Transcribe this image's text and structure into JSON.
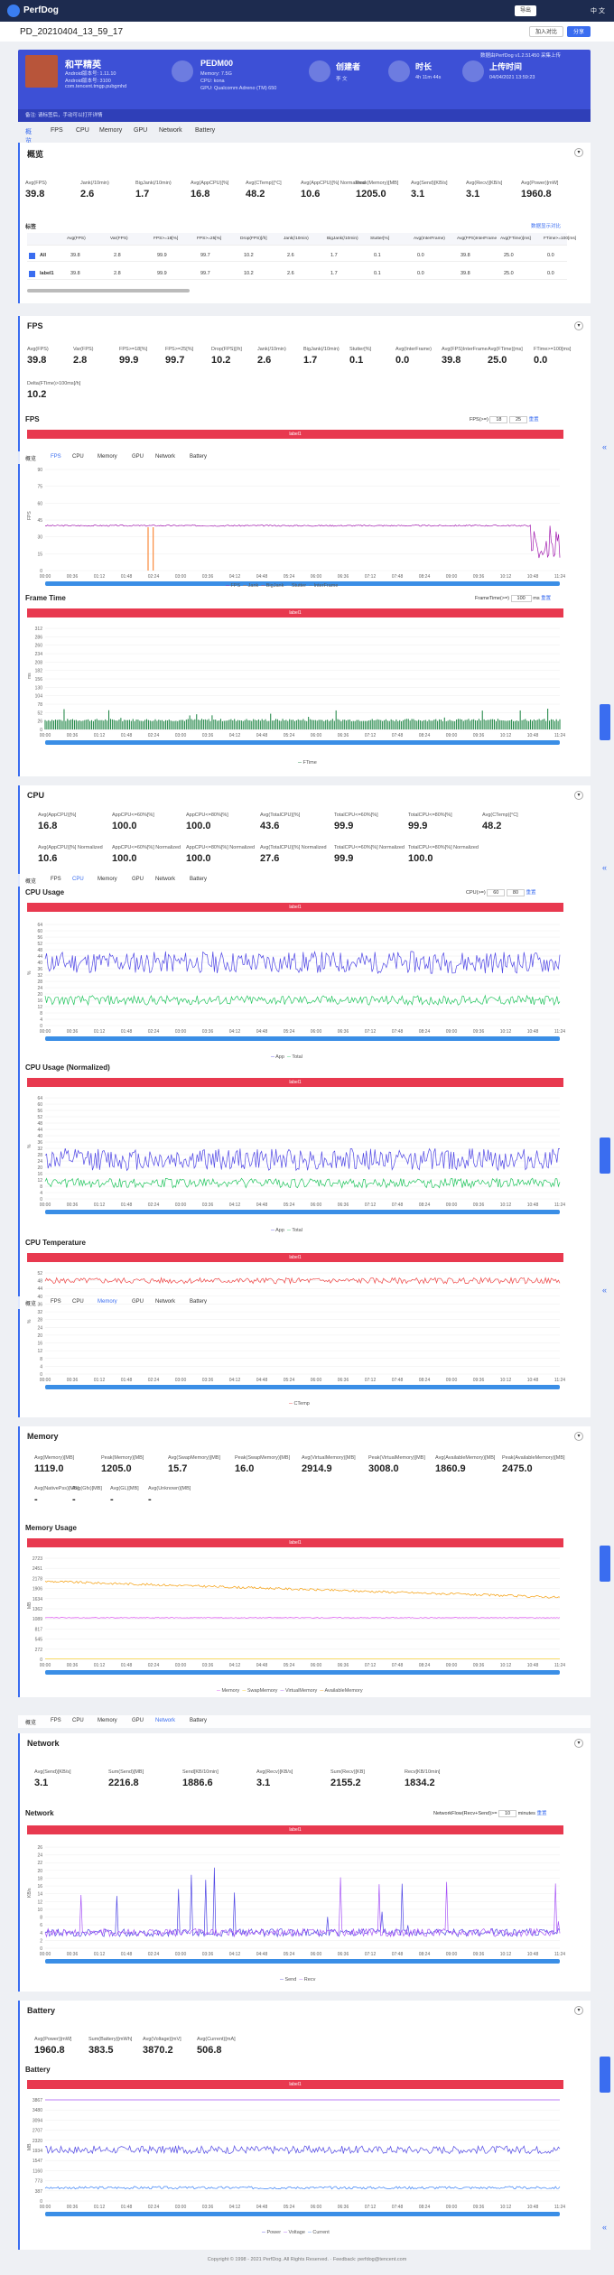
{
  "app": {
    "brand": "PerfDog",
    "btn_dl": "导出",
    "lang": "中 文"
  },
  "title": {
    "text": "PD_20210404_13_59_17",
    "btn1": "加入对比",
    "btn2": "分享"
  },
  "hero": {
    "name": "和平精英",
    "android": "Android版本号: 1.11.10",
    "ver": "Android版本号: 3100",
    "pkg": "com.tencent.tmgp.pubgmhd",
    "device": "PEDM00",
    "mem": "Memory: 7.5G",
    "cpu": "CPU: kona",
    "gpu": "GPU: Qualcomm Adreno (TM) 650",
    "creator_l": "创建者",
    "creator": "李 文",
    "dur_l": "时长",
    "dur": "4h 11m 44s",
    "up_l": "上传时间",
    "up": "04/04/2021 13:59:23",
    "footer": "备注: 请标签后，手动可以打开详情",
    "ver2": "数据由PerfDog v1.2.51450 采集上传"
  },
  "tabs": [
    "概览",
    "FPS",
    "CPU",
    "Memory",
    "GPU",
    "Network",
    "Battery"
  ],
  "overview": {
    "title": "概览",
    "stats": [
      {
        "k": "Avg(FPS)",
        "v": "39.8"
      },
      {
        "k": "Jank(/10min)",
        "v": "2.6"
      },
      {
        "k": "BigJank(/10min)",
        "v": "1.7"
      },
      {
        "k": "Avg(AppCPU)[%]",
        "v": "16.8"
      },
      {
        "k": "Avg(CTemp)[°C]",
        "v": "48.2"
      },
      {
        "k": "Avg(AppCPU)[%] Normalized",
        "v": "10.6"
      },
      {
        "k": "Peak(Memory)[MB]",
        "v": "1205.0"
      },
      {
        "k": "Avg(Send)[KB/s]",
        "v": "3.1"
      },
      {
        "k": "Avg(Recv)[KB/s]",
        "v": "3.1"
      },
      {
        "k": "Avg(Power)[mW]",
        "v": "1960.8"
      }
    ],
    "label_title": "标签",
    "label_link": "数据显示对比",
    "cols": [
      "Avg(FPS)",
      "Var(FPS)",
      "FPS>=18[%]",
      "FPS>=25[%]",
      "Drop(FPS)[/h]",
      "Jank(/10min)",
      "BigJank(/10min)",
      "Stutter[%]",
      "Avg(InterFrame)",
      "Avg(FPS)InterFrame",
      "Avg(FTime)[ms]",
      "FTime>=100[ms]"
    ],
    "rows": [
      {
        "n": "All",
        "v": [
          "39.8",
          "2.8",
          "99.9",
          "99.7",
          "10.2",
          "2.6",
          "1.7",
          "0.1",
          "0.0",
          "39.8",
          "25.0",
          "0.0"
        ]
      },
      {
        "n": "label1",
        "v": [
          "39.8",
          "2.8",
          "99.9",
          "99.7",
          "10.2",
          "2.6",
          "1.7",
          "0.1",
          "0.0",
          "39.8",
          "25.0",
          "0.0"
        ]
      }
    ]
  },
  "fps": {
    "title": "FPS",
    "stats": [
      {
        "k": "Avg(FPS)",
        "v": "39.8"
      },
      {
        "k": "Var(FPS)",
        "v": "2.8"
      },
      {
        "k": "FPS>=18[%]",
        "v": "99.9"
      },
      {
        "k": "FPS>=25[%]",
        "v": "99.7"
      },
      {
        "k": "Drop(FPS)[/h]",
        "v": "10.2"
      },
      {
        "k": "Jank(/10min)",
        "v": "2.6"
      },
      {
        "k": "BigJank(/10min)",
        "v": "1.7"
      },
      {
        "k": "Stutter[%]",
        "v": "0.1"
      },
      {
        "k": "Avg(InterFrame)",
        "v": "0.0"
      },
      {
        "k": "Avg(FPS)InterFrame",
        "v": "39.8"
      },
      {
        "k": "Avg(FTime)[ms]",
        "v": "25.0"
      },
      {
        "k": "FTime>=100[ms]",
        "v": "0.0"
      }
    ],
    "delta_k": "Delta(FTime)>100ms[/h]",
    "delta_v": "10.2",
    "chart_title": "FPS",
    "fps_ctrl": "FPS(>=)",
    "fps_a": "18",
    "fps_b": "25",
    "ctrl_btn": "重置",
    "label": "label1",
    "legend": [
      "FPS",
      "Jank",
      "BigJank",
      "Stutter",
      "InterFrame"
    ],
    "ft_title": "Frame Time",
    "ft_ctrl": "FrameTime(>=)",
    "ft_val": "100",
    "ft_unit": "ms",
    "ft_legend": [
      "FTime"
    ]
  },
  "cpu": {
    "title": "CPU",
    "stats": [
      {
        "k": "Avg(AppCPU)[%]",
        "v": "16.8"
      },
      {
        "k": "AppCPU<=60%[%]",
        "v": "100.0"
      },
      {
        "k": "AppCPU<=80%[%]",
        "v": "100.0"
      },
      {
        "k": "Avg(TotalCPU)[%]",
        "v": "43.6"
      },
      {
        "k": "TotalCPU<=60%[%]",
        "v": "99.9"
      },
      {
        "k": "TotalCPU<=80%[%]",
        "v": "99.9"
      },
      {
        "k": "Avg(CTemp)[°C]",
        "v": "48.2"
      }
    ],
    "stats2": [
      {
        "k": "Avg(AppCPU)[%] Normalized",
        "v": "10.6"
      },
      {
        "k": "AppCPU<=60%[%] Normalized",
        "v": "100.0"
      },
      {
        "k": "AppCPU<=80%[%] Normalized",
        "v": "100.0"
      },
      {
        "k": "Avg(TotalCPU)[%] Normalized",
        "v": "27.6"
      },
      {
        "k": "TotalCPU<=60%[%] Normalized",
        "v": "99.9"
      },
      {
        "k": "TotalCPU<=80%[%] Normalized",
        "v": "100.0"
      }
    ],
    "usage": "CPU Usage",
    "usage_n": "CPU Usage (Normalized)",
    "temp": "CPU Temperature",
    "ctrl": "CPU(>=)",
    "ca": "60",
    "cb": "80",
    "legend": [
      "App",
      "Total"
    ],
    "temp_legend": [
      "CTemp"
    ]
  },
  "memory": {
    "title": "Memory",
    "stats": [
      {
        "k": "Avg(Memory)[MB]",
        "v": "1119.0"
      },
      {
        "k": "Peak(Memory)[MB]",
        "v": "1205.0"
      },
      {
        "k": "Avg(SwapMemory)[MB]",
        "v": "15.7"
      },
      {
        "k": "Peak(SwapMemory)[MB]",
        "v": "16.0"
      },
      {
        "k": "Avg(VirtualMemory)[MB]",
        "v": "2914.9"
      },
      {
        "k": "Peak(VirtualMemory)[MB]",
        "v": "3008.0"
      },
      {
        "k": "Avg(AvailableMemory)[MB]",
        "v": "1860.9"
      },
      {
        "k": "Peak(AvailableMemory)[MB]",
        "v": "2475.0"
      }
    ],
    "stats2": [
      {
        "k": "Avg(NativePss)[MB]",
        "v": "-"
      },
      {
        "k": "Avg(Gfx)[MB]",
        "v": "-"
      },
      {
        "k": "Avg(GL)[MB]",
        "v": "-"
      },
      {
        "k": "Avg(Unknown)[MB]",
        "v": "-"
      }
    ],
    "chart": "Memory Usage",
    "legend": [
      "Memory",
      "SwapMemory",
      "VirtualMemory",
      "AvailableMemory"
    ]
  },
  "network": {
    "title": "Network",
    "stats": [
      {
        "k": "Avg(Send)[KB/s]",
        "v": "3.1"
      },
      {
        "k": "Sum(Send)[MB]",
        "v": "2216.8"
      },
      {
        "k": "Send[KB/10min]",
        "v": "1886.6"
      },
      {
        "k": "Avg(Recv)[KB/s]",
        "v": "3.1"
      },
      {
        "k": "Sum(Recv)[KB]",
        "v": "2155.2"
      },
      {
        "k": "Recv[KB/10min]",
        "v": "1834.2"
      }
    ],
    "chart": "Network",
    "ctrl": "NetworkFlow(Recv+Send)>=",
    "cval": "10",
    "cunit": "minutes",
    "legend": [
      "Send",
      "Recv"
    ]
  },
  "battery": {
    "title": "Battery",
    "stats": [
      {
        "k": "Avg(Power)[mW]",
        "v": "1960.8"
      },
      {
        "k": "Sum(Battery)[mWh]",
        "v": "383.5"
      },
      {
        "k": "Avg(Voltage)[mV]",
        "v": "3870.2"
      },
      {
        "k": "Avg(Current)[mA]",
        "v": "506.8"
      }
    ],
    "chart": "Battery",
    "legend": [
      "Power",
      "Voltage",
      "Current"
    ]
  },
  "xticks": [
    "00:00",
    "00:36",
    "01:12",
    "01:48",
    "02:24",
    "03:00",
    "03:36",
    "04:12",
    "04:48",
    "05:24",
    "06:00",
    "06:36",
    "07:12",
    "07:48",
    "08:24",
    "09:00",
    "09:36",
    "10:12",
    "10:48",
    "11:24"
  ],
  "ylabels": {
    "fps": "FPS",
    "ms": "ms",
    "pct": "%",
    "mb": "MB",
    "kbs": "KB/s"
  },
  "footer": "Copyright © 1998 - 2021 PerfDog. All Rights Reserved. · Feedback: perfdog@tencent.com",
  "colors": {
    "accent": "#3a6df0",
    "hero": "#3d50d6",
    "banner": "#e8394f",
    "fps": "#a21caf",
    "jank": "#f97316",
    "ft": "#15803d",
    "app": "#4f46e5",
    "total": "#22c55e",
    "temp": "#ef4444",
    "mem": "#d946ef",
    "avail": "#f59e0b",
    "send": "#4f46e5",
    "recv": "#a855f7"
  }
}
